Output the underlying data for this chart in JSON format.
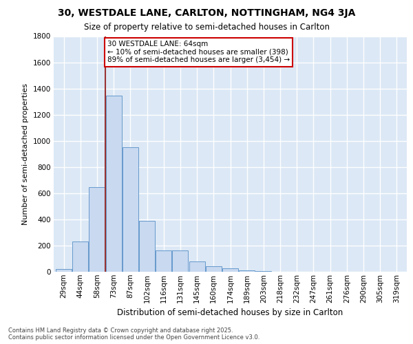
{
  "title": "30, WESTDALE LANE, CARLTON, NOTTINGHAM, NG4 3JA",
  "subtitle": "Size of property relative to semi-detached houses in Carlton",
  "xlabel": "Distribution of semi-detached houses by size in Carlton",
  "ylabel": "Number of semi-detached properties",
  "categories": [
    "29sqm",
    "44sqm",
    "58sqm",
    "73sqm",
    "87sqm",
    "102sqm",
    "116sqm",
    "131sqm",
    "145sqm",
    "160sqm",
    "174sqm",
    "189sqm",
    "203sqm",
    "218sqm",
    "232sqm",
    "247sqm",
    "261sqm",
    "276sqm",
    "290sqm",
    "305sqm",
    "319sqm"
  ],
  "values": [
    20,
    230,
    645,
    1345,
    950,
    390,
    165,
    165,
    80,
    42,
    28,
    10,
    5,
    0,
    0,
    0,
    0,
    0,
    0,
    0,
    0
  ],
  "bar_color": "#c8d9f0",
  "bar_edge_color": "#6699cc",
  "background_color": "#dce8f5",
  "grid_color": "#ffffff",
  "vline_x": 2.5,
  "vline_color": "#993333",
  "annotation_text": "30 WESTDALE LANE: 64sqm\n← 10% of semi-detached houses are smaller (398)\n89% of semi-detached houses are larger (3,454) →",
  "annotation_box_facecolor": "#ffffff",
  "annotation_box_edgecolor": "#cc0000",
  "footer_text": "Contains HM Land Registry data © Crown copyright and database right 2025.\nContains public sector information licensed under the Open Government Licence v3.0.",
  "ylim_max": 1800,
  "yticks": [
    0,
    200,
    400,
    600,
    800,
    1000,
    1200,
    1400,
    1600,
    1800
  ],
  "title_fontsize": 10,
  "subtitle_fontsize": 8.5,
  "ylabel_fontsize": 8,
  "xlabel_fontsize": 8.5,
  "tick_fontsize": 7.5,
  "ann_fontsize": 7.5
}
